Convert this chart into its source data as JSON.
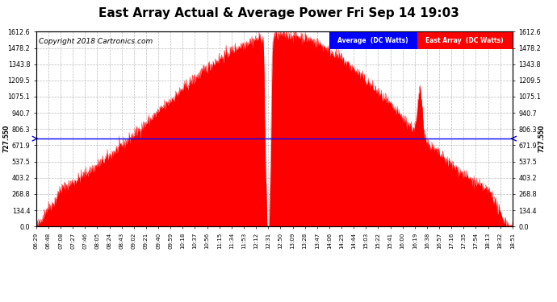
{
  "title": "East Array Actual & Average Power Fri Sep 14 19:03",
  "copyright": "Copyright 2018 Cartronics.com",
  "legend_avg": "Average  (DC Watts)",
  "legend_east": "East Array  (DC Watts)",
  "avg_value": 727.55,
  "yticks": [
    0.0,
    134.4,
    268.8,
    403.2,
    537.5,
    671.9,
    806.3,
    940.7,
    1075.1,
    1209.5,
    1343.8,
    1478.2,
    1612.6
  ],
  "ymax": 1612.6,
  "ymin": 0.0,
  "bg_color": "#ffffff",
  "grid_color": "#bbbbbb",
  "fill_color": "#ff0000",
  "line_color": "#ff0000",
  "avg_line_color": "#0000ff",
  "title_fontsize": 11,
  "copyright_fontsize": 6.5,
  "xtick_labels": [
    "06:29",
    "06:48",
    "07:08",
    "07:27",
    "07:46",
    "08:05",
    "08:24",
    "08:43",
    "09:02",
    "09:21",
    "09:40",
    "09:59",
    "10:18",
    "10:37",
    "10:56",
    "11:15",
    "11:34",
    "11:53",
    "12:12",
    "12:31",
    "12:50",
    "13:09",
    "13:28",
    "13:47",
    "14:06",
    "14:25",
    "14:44",
    "15:03",
    "15:22",
    "15:41",
    "16:00",
    "16:19",
    "16:38",
    "16:57",
    "17:16",
    "17:35",
    "17:54",
    "18:13",
    "18:32",
    "18:51"
  ]
}
